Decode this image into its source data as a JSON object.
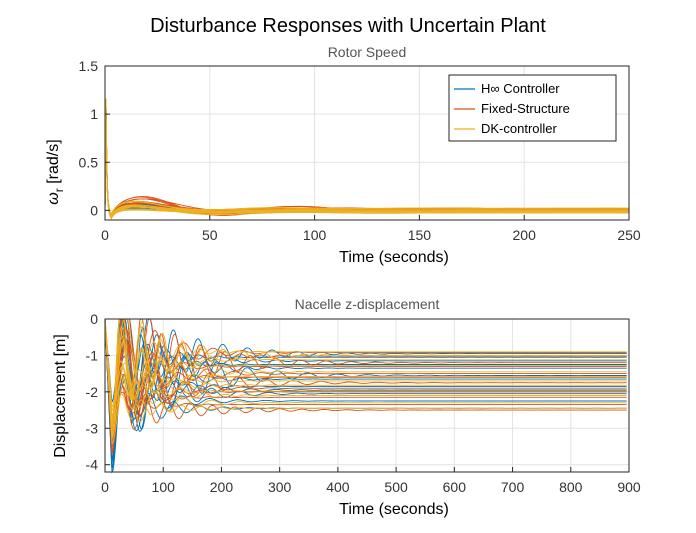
{
  "figure_title": "Disturbance Responses with Uncertain Plant",
  "colors": {
    "blue": "#0072BD",
    "orange": "#D95319",
    "yellow": "#EDB120"
  },
  "chart_data": [
    {
      "type": "line",
      "title": "Rotor Speed",
      "xlabel": "Time (seconds)",
      "ylabel": "ω_r [rad/s]",
      "ylabel_main": "ω",
      "ylabel_sub": "r",
      "ylabel_rest": " [rad/s]",
      "xlim": [
        0,
        250
      ],
      "ylim": [
        -0.1,
        1.5
      ],
      "x_ticks": [
        "0",
        "50",
        "100",
        "150",
        "200",
        "250"
      ],
      "y_ticks": [
        "0",
        "0.5",
        "1",
        "1.5"
      ],
      "grid": true,
      "legend_position": "top-right",
      "legend": [
        "H∞ Controller",
        "Fixed-Structure",
        "DK-controller"
      ],
      "series": [
        {
          "name": "H∞ Controller",
          "color": "#0072BD",
          "samples": 12,
          "peak": 1.15,
          "final_range": [
            -0.02,
            0.02
          ],
          "bump_amp": [
            0.05,
            0.12
          ],
          "bump_time": 17,
          "decay": 16
        },
        {
          "name": "Fixed-Structure",
          "color": "#D95319",
          "samples": 12,
          "peak": 1.12,
          "final_range": [
            -0.02,
            0.02
          ],
          "bump_amp": [
            0.08,
            0.15
          ],
          "bump_time": 18,
          "decay": 28
        },
        {
          "name": "DK-controller",
          "color": "#EDB120",
          "samples": 12,
          "peak": 1.18,
          "final_range": [
            -0.03,
            0.03
          ],
          "bump_amp": [
            0.04,
            0.12
          ],
          "bump_time": 16,
          "decay": 14
        }
      ]
    },
    {
      "type": "line",
      "title": "Nacelle z-displacement",
      "xlabel": "Time (seconds)",
      "ylabel": "Displacement [m]",
      "xlim": [
        0,
        900
      ],
      "ylim": [
        -4.2,
        0
      ],
      "x_ticks": [
        "0",
        "100",
        "200",
        "300",
        "400",
        "500",
        "600",
        "700",
        "800",
        "900"
      ],
      "y_ticks": [
        "-4",
        "-3",
        "-2",
        "-1",
        "0"
      ],
      "grid": true,
      "series": [
        {
          "name": "H∞ Controller",
          "color": "#0072BD",
          "finals": [
            -0.95,
            -1.05,
            -1.15,
            -1.25,
            -1.35,
            -1.55,
            -1.65,
            -1.85,
            -1.95,
            -2.05,
            -2.25,
            -2.45
          ],
          "undershoot": -4.3
        },
        {
          "name": "Fixed-Structure",
          "color": "#D95319",
          "finals": [
            -0.92,
            -1.02,
            -1.2,
            -1.3,
            -1.5,
            -1.6,
            -1.75,
            -1.9,
            -2.0,
            -2.15,
            -2.35,
            -2.5
          ],
          "undershoot": -3.8
        },
        {
          "name": "DK-controller",
          "color": "#EDB120",
          "finals": [
            -0.9,
            -1.0,
            -1.12,
            -1.28,
            -1.45,
            -1.58,
            -1.7,
            -1.82,
            -1.98,
            -2.1,
            -2.3,
            -2.45
          ],
          "undershoot": -3.5
        }
      ]
    }
  ]
}
